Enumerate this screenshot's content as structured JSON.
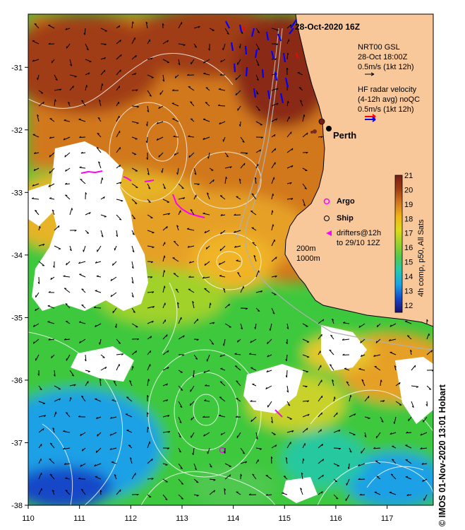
{
  "map": {
    "date_title": "28-Oct-2020 16Z",
    "city": "Perth",
    "legend": {
      "nrt_line1": "NRT00 GSL",
      "nrt_line2": "28-Oct 18:00Z",
      "nrt_line3": "0.5m/s (1kt 12h)",
      "hf_line1": "HF radar velocity",
      "hf_line2": "(4-12h avg) noQC",
      "hf_line3": "0.5m/s (1kt 12h)",
      "argo": "Argo",
      "ship": "Ship",
      "drifters_line1": "drifters@12h",
      "drifters_line2": "to 29/10 12Z",
      "depth_200": "200m",
      "depth_1000": "1000m"
    },
    "colorbar": {
      "label": "4h comp, p50, All Sats",
      "min": 11.5,
      "max": 21,
      "ticks": [
        "12",
        "13",
        "14",
        "15",
        "16",
        "17",
        "18",
        "19",
        "20",
        "21"
      ],
      "colors": [
        "#1a1070",
        "#1446c8",
        "#1aa0e6",
        "#22c8b4",
        "#50c850",
        "#96d22a",
        "#dcdc14",
        "#f0b414",
        "#d2781e",
        "#a03c14",
        "#781e14"
      ]
    },
    "x_axis": {
      "ticks": [
        "110",
        "111",
        "112",
        "113",
        "114",
        "115",
        "116",
        "117"
      ],
      "range": [
        110,
        117.9
      ]
    },
    "y_axis": {
      "ticks": [
        "-31",
        "-32",
        "-33",
        "-34",
        "-35",
        "-36",
        "-37",
        "-38"
      ],
      "range": [
        -38,
        -30.15
      ]
    },
    "credit": "© IMOS 01-Nov-2020 13:01 Hobart",
    "colors": {
      "land": "#f8c89a",
      "nrt_arrow": "#000000",
      "hf_arrow_a": "#ff0000",
      "hf_arrow_b": "#0000ff",
      "argo": "#ff00ff",
      "drifter": "#ff00ff"
    }
  }
}
